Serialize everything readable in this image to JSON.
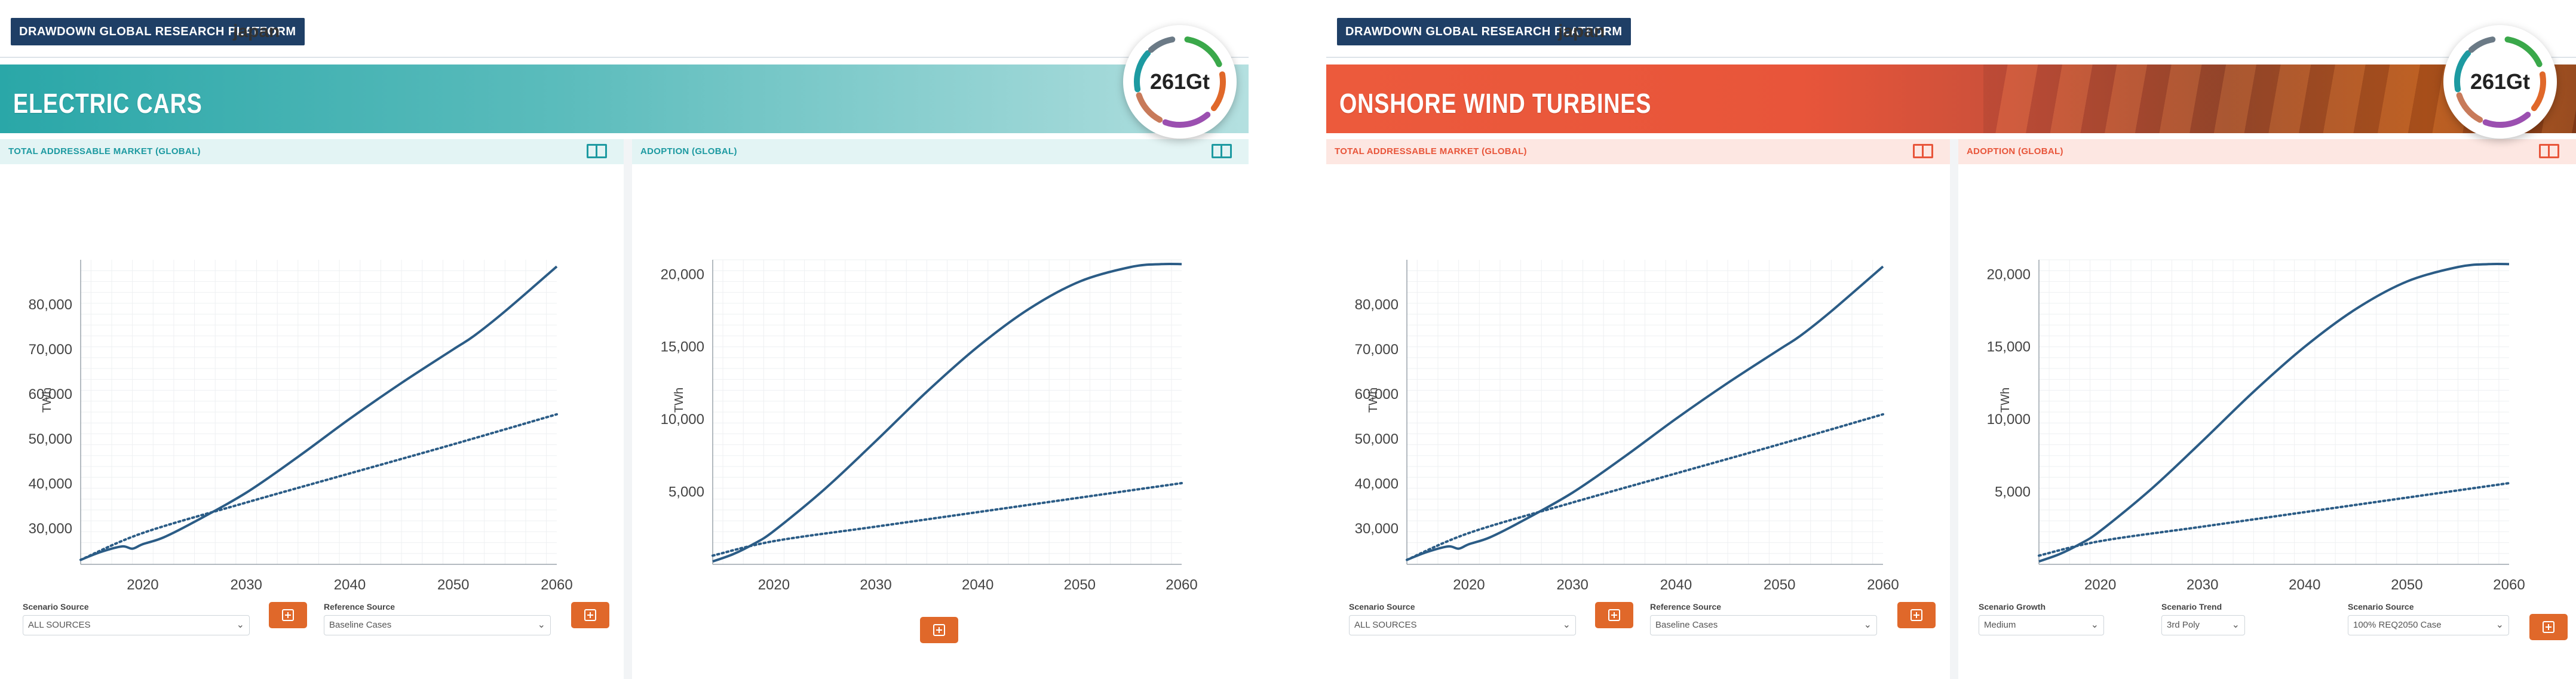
{
  "panels": [
    {
      "id": "electric-cars",
      "brand": "DRAWDOWN GLOBAL RESEARCH PLATFORM",
      "region": "japan",
      "solution_title": "ELECTRIC CARS",
      "badge_value": "261Gt",
      "theme": {
        "accent": "#2aa7a8",
        "header_bg": "#e3f4f4",
        "title_color": "#1d9aa1",
        "icon_color": "#1d9aa1",
        "banner_from": "#2aa7a8",
        "banner_to": "#b4e0e0"
      },
      "cards": {
        "tam": {
          "title": "TOTAL ADDRESSABLE MARKET (GLOBAL)"
        },
        "adoption": {
          "title": "ADOPTION (GLOBAL)"
        }
      },
      "controls_left": [
        {
          "label": "Scenario Source",
          "value": "ALL SOURCES"
        },
        {
          "label": "Reference Source",
          "value": "Baseline Cases"
        }
      ]
    },
    {
      "id": "onshore-wind",
      "brand": "DRAWDOWN GLOBAL RESEARCH PLATFORM",
      "region": "japan",
      "solution_title": "ONSHORE WIND TURBINES",
      "badge_value": "261Gt",
      "theme": {
        "accent": "#e8553a",
        "header_bg": "#fde7e2",
        "title_color": "#e8553a",
        "icon_color": "#e8553a",
        "banner_from": "#ec5a3c",
        "banner_to": "#b5551c"
      },
      "cards": {
        "tam": {
          "title": "TOTAL ADDRESSABLE MARKET (GLOBAL)"
        },
        "adoption": {
          "title": "ADOPTION (GLOBAL)"
        }
      },
      "controls_left": [
        {
          "label": "Scenario Source",
          "value": "ALL SOURCES"
        },
        {
          "label": "Reference Source",
          "value": "Baseline Cases"
        }
      ],
      "controls_right": [
        {
          "label": "Scenario Growth",
          "value": "Medium"
        },
        {
          "label": "Scenario Trend",
          "value": "3rd Poly"
        },
        {
          "label": "Scenario Source",
          "value": "100% REQ2050 Case"
        }
      ]
    }
  ],
  "chart_data": [
    {
      "type": "line",
      "ylabel": "TWh",
      "xlim": [
        2014,
        2060
      ],
      "ylim": [
        22000,
        90000
      ],
      "x_ticks": [
        "2020",
        "2030",
        "2040",
        "2050",
        "2060"
      ],
      "y_ticks": [
        "30,000",
        "40,000",
        "50,000",
        "60,000",
        "70,000",
        "80,000"
      ],
      "x_tick_values": [
        2020,
        2030,
        2040,
        2050,
        2060
      ],
      "y_tick_values": [
        30000,
        40000,
        50000,
        60000,
        70000,
        80000
      ],
      "series": [
        {
          "style": "solid",
          "x": [
            2014,
            2016,
            2018,
            2019,
            2020,
            2022,
            2025,
            2030,
            2035,
            2040,
            2045,
            2050,
            2052,
            2055,
            2060
          ],
          "y": [
            23000,
            24800,
            26000,
            25500,
            26500,
            28000,
            31500,
            38000,
            46000,
            54500,
            62500,
            70000,
            73000,
            78500,
            88500
          ]
        },
        {
          "style": "dotted",
          "x": [
            2014,
            2020,
            2030,
            2040,
            2050,
            2060
          ],
          "y": [
            23000,
            29000,
            35800,
            42300,
            48800,
            55500
          ]
        }
      ]
    },
    {
      "type": "line",
      "ylabel": "TWh",
      "xlim": [
        2014,
        2060
      ],
      "ylim": [
        0,
        21000
      ],
      "x_ticks": [
        "2020",
        "2030",
        "2040",
        "2050",
        "2060"
      ],
      "y_ticks": [
        "5,000",
        "10,000",
        "15,000",
        "20,000"
      ],
      "x_tick_values": [
        2020,
        2030,
        2040,
        2050,
        2060
      ],
      "y_tick_values": [
        5000,
        10000,
        15000,
        20000
      ],
      "series": [
        {
          "style": "solid",
          "x": [
            2014,
            2016,
            2018,
            2020,
            2025,
            2030,
            2035,
            2040,
            2045,
            2050,
            2055,
            2058,
            2060
          ],
          "y": [
            200,
            700,
            1400,
            2300,
            5200,
            8500,
            11900,
            15000,
            17600,
            19500,
            20500,
            20700,
            20700
          ]
        },
        {
          "style": "dotted",
          "x": [
            2014,
            2020,
            2030,
            2040,
            2050,
            2060
          ],
          "y": [
            600,
            1600,
            2600,
            3600,
            4600,
            5600
          ]
        }
      ]
    }
  ]
}
